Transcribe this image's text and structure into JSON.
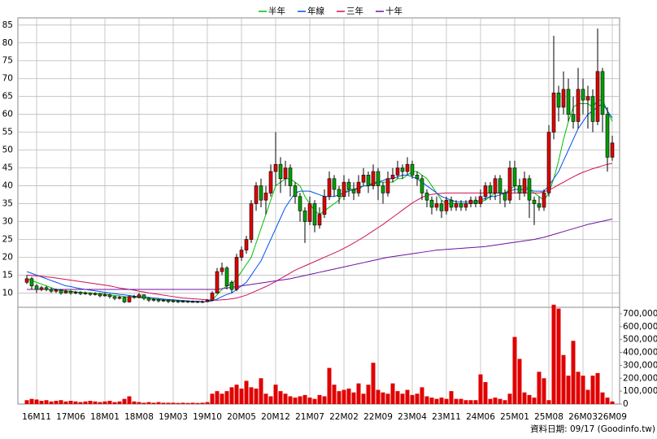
{
  "chart_data": {
    "type": "candlestick",
    "footer": "資料日期: 09/17 (Goodinfo.tw)",
    "categories": [
      null,
      null,
      "16M11",
      null,
      null,
      null,
      null,
      null,
      null,
      "17M06",
      null,
      null,
      null,
      null,
      null,
      null,
      "18M01",
      null,
      null,
      null,
      null,
      null,
      null,
      "18M08",
      null,
      null,
      null,
      null,
      null,
      null,
      "19M03",
      null,
      null,
      null,
      null,
      null,
      null,
      "19M10",
      null,
      null,
      null,
      null,
      null,
      null,
      "20M05",
      null,
      null,
      null,
      null,
      null,
      null,
      "20M12",
      null,
      null,
      null,
      null,
      null,
      null,
      "21M07",
      null,
      null,
      null,
      null,
      null,
      null,
      "22M02",
      null,
      null,
      null,
      null,
      null,
      null,
      "22M09",
      null,
      null,
      null,
      null,
      null,
      null,
      "23M04",
      null,
      null,
      null,
      null,
      null,
      null,
      "23M11",
      null,
      null,
      null,
      null,
      null,
      null,
      "24M06",
      null,
      null,
      null,
      null,
      null,
      null,
      "25M01",
      null,
      null,
      null,
      null,
      null,
      null,
      "25M08",
      null,
      null,
      null,
      null,
      null,
      null,
      "26M03",
      null,
      null,
      null,
      null,
      null,
      "26M09"
    ],
    "open": [
      13,
      14,
      12,
      11,
      11.5,
      11,
      10.5,
      10.8,
      10,
      10.5,
      10,
      10.2,
      9.8,
      10,
      9.6,
      9.8,
      9.2,
      9.5,
      9,
      8.5,
      8.8,
      7.5,
      9,
      8.8,
      9.5,
      8.5,
      8,
      8.2,
      7.8,
      8,
      7.6,
      7.8,
      7.5,
      7.7,
      7.5,
      7.6,
      7.4,
      7.6,
      8,
      10,
      16,
      17,
      13,
      11,
      20,
      22,
      25,
      35,
      40,
      36,
      38,
      44,
      46,
      42,
      45,
      40,
      37,
      33,
      30,
      35,
      29,
      32,
      37,
      42,
      39,
      37,
      41,
      39,
      38,
      41,
      43,
      40,
      44,
      40,
      38,
      42,
      43,
      45,
      44,
      46,
      43,
      42,
      38,
      36,
      34,
      35,
      33,
      36,
      34,
      35,
      34,
      35,
      36,
      35,
      37,
      40,
      38,
      42,
      38,
      36,
      45,
      40,
      38,
      42,
      36,
      35,
      34,
      38,
      55,
      66,
      62,
      67,
      60,
      58,
      67,
      64,
      65,
      58,
      72,
      60,
      48
    ],
    "high": [
      15,
      14.5,
      12.5,
      12,
      12,
      11.5,
      11.2,
      11,
      11,
      10.8,
      10.6,
      10.5,
      10.4,
      10.2,
      10.2,
      10,
      10,
      9.8,
      9.2,
      9.2,
      9,
      9.3,
      9.5,
      10,
      9.6,
      8.8,
      8.6,
      8.4,
      8.3,
      8.2,
      8.1,
      8,
      8,
      7.9,
      7.9,
      7.8,
      7.9,
      8.3,
      10.5,
      17,
      18.5,
      17.5,
      13.5,
      21,
      23,
      26,
      36,
      41,
      42,
      40,
      46,
      55,
      48,
      47,
      46,
      41,
      38,
      34,
      37,
      36,
      34,
      39,
      44,
      43,
      40,
      43,
      42,
      41,
      43,
      45,
      44,
      46,
      45,
      41,
      44,
      45,
      47,
      46,
      48,
      47,
      44,
      43,
      39,
      37,
      37,
      36,
      37,
      37,
      36,
      36,
      36,
      37,
      37,
      39,
      41,
      41,
      43,
      43,
      39,
      47,
      47,
      42,
      44,
      43,
      37,
      37,
      39,
      57,
      82,
      68,
      72,
      70,
      65,
      73,
      70,
      68,
      67,
      84,
      73,
      62,
      54
    ],
    "low": [
      12.5,
      11,
      10,
      10.5,
      10.5,
      10,
      10,
      9.5,
      9.8,
      9.5,
      9.6,
      9.4,
      9.5,
      9.2,
      9.3,
      8.8,
      9,
      8.5,
      8,
      8.2,
      7.2,
      7.3,
      8.4,
      8.5,
      8,
      7.5,
      7.6,
      7.4,
      7.5,
      7.2,
      7.3,
      7.2,
      7.3,
      7.2,
      7.3,
      7.2,
      7.2,
      7.4,
      7.8,
      9.8,
      15,
      11,
      10,
      10.5,
      19,
      21,
      24,
      33,
      34,
      32,
      37,
      40,
      38,
      40,
      37,
      35,
      30,
      24,
      29,
      27,
      28,
      31,
      36,
      37,
      35,
      36,
      37,
      36,
      37,
      40,
      38,
      39,
      36,
      35,
      37,
      41,
      42,
      42,
      43,
      42,
      40,
      36,
      34,
      32,
      33,
      31,
      32,
      33,
      33,
      33,
      33,
      34,
      34,
      34,
      36,
      36,
      36,
      35,
      34,
      35,
      38,
      36,
      37,
      31,
      29,
      33,
      33,
      37,
      53,
      58,
      60,
      58,
      56,
      56,
      60,
      56,
      55,
      57,
      55,
      44,
      47
    ],
    "close": [
      14,
      12,
      11,
      11.5,
      11,
      10.5,
      10.8,
      10,
      10.5,
      10,
      10.2,
      9.8,
      10,
      9.6,
      9.8,
      9.2,
      9.5,
      9,
      8.5,
      8.8,
      7.5,
      9,
      8.8,
      9.5,
      8.5,
      8,
      8.2,
      7.8,
      8,
      7.6,
      7.8,
      7.5,
      7.7,
      7.5,
      7.6,
      7.4,
      7.6,
      8,
      10,
      16,
      17,
      12,
      11,
      20,
      22,
      25,
      35,
      40,
      36,
      38,
      44,
      46,
      42,
      45,
      40,
      37,
      33,
      30,
      35,
      29,
      32,
      37,
      42,
      39,
      37,
      41,
      39,
      38,
      41,
      43,
      40,
      44,
      40,
      38,
      42,
      43,
      45,
      44,
      46,
      43,
      42,
      38,
      36,
      34,
      35,
      33,
      36,
      34,
      35,
      34,
      35,
      36,
      35,
      37,
      40,
      38,
      42,
      38,
      36,
      45,
      40,
      38,
      42,
      36,
      35,
      34,
      38,
      55,
      66,
      62,
      67,
      60,
      58,
      67,
      64,
      65,
      58,
      72,
      60,
      48,
      52
    ],
    "up_color": "#e00000",
    "down_color": "#00a000",
    "series": [
      {
        "name": "半年",
        "color": "#00c000",
        "values": [
          14,
          13.5,
          13,
          12.5,
          12,
          11.5,
          11,
          10.8,
          10.6,
          10.5,
          10.3,
          10.2,
          10.1,
          10,
          9.9,
          9.8,
          9.7,
          9.5,
          9.3,
          9.2,
          9,
          8.9,
          8.8,
          8.7,
          8.6,
          8.5,
          8.4,
          8.2,
          8.1,
          8,
          7.9,
          7.8,
          7.7,
          7.6,
          7.6,
          7.6,
          7.6,
          7.6,
          8,
          9.5,
          11,
          12,
          12.5,
          14,
          16,
          18,
          20,
          24,
          28,
          32,
          36,
          40,
          41,
          42,
          42,
          41,
          40,
          37,
          35,
          33,
          32,
          33,
          34,
          35,
          36,
          38,
          39,
          39,
          39,
          40,
          40,
          41,
          41,
          41,
          41,
          41,
          42,
          42,
          43,
          44,
          44,
          43,
          42,
          40,
          38,
          36,
          35,
          35,
          35,
          35,
          35,
          35,
          35,
          35.5,
          36,
          37,
          38,
          38,
          38,
          39,
          40,
          40,
          40,
          39,
          38,
          37,
          36,
          38,
          42,
          47,
          53,
          58,
          62,
          63,
          63,
          63,
          62,
          64,
          64,
          61,
          58
        ]
      },
      {
        "name": "年線",
        "color": "#0050f0",
        "values": [
          16,
          15.5,
          15,
          14.5,
          14,
          13.5,
          13,
          12.5,
          12,
          11.8,
          11.5,
          11.2,
          11,
          10.8,
          10.6,
          10.4,
          10.2,
          10,
          9.8,
          9.6,
          9.5,
          9.3,
          9.1,
          9,
          8.9,
          8.8,
          8.6,
          8.5,
          8.3,
          8.2,
          8.1,
          8,
          7.9,
          7.8,
          7.7,
          7.7,
          7.6,
          7.6,
          7.8,
          8.3,
          9,
          9.6,
          10,
          11,
          12,
          13,
          15,
          17,
          19,
          22,
          25,
          28,
          31,
          34,
          36,
          38,
          38.5,
          38.5,
          38.5,
          38,
          37.5,
          37,
          37,
          37,
          37.5,
          38,
          38.5,
          39,
          39.5,
          40,
          40,
          40.5,
          41,
          41.5,
          42,
          42,
          42.5,
          43,
          43,
          42.5,
          42,
          41,
          40,
          39,
          38,
          37,
          36.5,
          36,
          35.5,
          35.5,
          35.5,
          35.5,
          35.5,
          36,
          36.5,
          37,
          37,
          37.5,
          38,
          38.5,
          39,
          39,
          39,
          39,
          38.5,
          38.5,
          38.5,
          40,
          42,
          44,
          47,
          50,
          53,
          56,
          58,
          60,
          61,
          62,
          63,
          61,
          59
        ]
      },
      {
        "name": "三年",
        "color": "#d0105a",
        "values": [
          15,
          14.9,
          14.8,
          14.7,
          14.5,
          14.4,
          14.2,
          14,
          13.8,
          13.6,
          13.4,
          13.2,
          13,
          12.8,
          12.6,
          12.4,
          12.2,
          12,
          11.7,
          11.4,
          11.2,
          11,
          10.8,
          10.5,
          10.3,
          10,
          9.8,
          9.6,
          9.4,
          9.2,
          9,
          8.8,
          8.6,
          8.5,
          8.4,
          8.3,
          8.2,
          8.1,
          8,
          8,
          8.1,
          8.2,
          8.4,
          8.6,
          9,
          9.4,
          10,
          10.6,
          11.2,
          11.8,
          12.5,
          13.2,
          14,
          14.8,
          15.6,
          16.4,
          17,
          17.6,
          18.2,
          18.8,
          19.4,
          20,
          20.6,
          21.2,
          21.8,
          22.5,
          23.2,
          24,
          24.8,
          25.6,
          26.5,
          27.4,
          28.3,
          29.2,
          30.2,
          31.2,
          32.2,
          33.2,
          34.2,
          35.2,
          36,
          36.8,
          37.3,
          37.6,
          37.8,
          37.9,
          38,
          38,
          38,
          38,
          38,
          38,
          38,
          38,
          38,
          38,
          38,
          38,
          38,
          38,
          38,
          38,
          38,
          38,
          38,
          38,
          38.3,
          38.8,
          39.5,
          40.3,
          41,
          41.8,
          42.5,
          43.2,
          43.8,
          44.3,
          44.8,
          45.2,
          45.6,
          46,
          46.3
        ]
      },
      {
        "name": "十年",
        "color": "#7010a0",
        "values": [
          11,
          11,
          11,
          11,
          11,
          11,
          11,
          11,
          11,
          11,
          11,
          11,
          11,
          11,
          11,
          11,
          11,
          11,
          11,
          11,
          11,
          11,
          11,
          11,
          11,
          11,
          11,
          11,
          11,
          11,
          11,
          11,
          11,
          11,
          11,
          11,
          11,
          11,
          11,
          11,
          11.2,
          11.4,
          11.6,
          11.8,
          12,
          12.2,
          12.4,
          12.6,
          12.8,
          13,
          13.2,
          13.4,
          13.6,
          13.8,
          14,
          14.3,
          14.6,
          14.9,
          15.2,
          15.5,
          15.8,
          16.1,
          16.4,
          16.7,
          17,
          17.3,
          17.6,
          17.9,
          18.2,
          18.5,
          18.8,
          19.1,
          19.4,
          19.7,
          20,
          20.2,
          20.4,
          20.6,
          20.8,
          21,
          21.2,
          21.4,
          21.6,
          21.8,
          22,
          22.1,
          22.2,
          22.3,
          22.4,
          22.5,
          22.6,
          22.7,
          22.8,
          22.9,
          23,
          23.2,
          23.4,
          23.6,
          23.8,
          24,
          24.2,
          24.4,
          24.6,
          24.8,
          25,
          25.3,
          25.6,
          26,
          26.4,
          26.8,
          27.2,
          27.6,
          28,
          28.4,
          28.8,
          29.2,
          29.5,
          29.8,
          30.1,
          30.4,
          30.7
        ]
      }
    ],
    "ylim": [
      6,
      87
    ],
    "yticks": [
      10,
      15,
      20,
      25,
      30,
      35,
      40,
      45,
      50,
      55,
      60,
      65,
      70,
      75,
      80,
      85
    ],
    "grid": true,
    "volume": {
      "color": "#e00000",
      "values": [
        30000,
        40000,
        35000,
        25000,
        30000,
        20000,
        25000,
        30000,
        20000,
        25000,
        20000,
        15000,
        20000,
        25000,
        20000,
        15000,
        20000,
        25000,
        15000,
        20000,
        40000,
        60000,
        20000,
        15000,
        10000,
        15000,
        10000,
        15000,
        10000,
        10000,
        10000,
        8000,
        10000,
        8000,
        10000,
        8000,
        10000,
        15000,
        80000,
        100000,
        80000,
        100000,
        130000,
        150000,
        120000,
        180000,
        130000,
        120000,
        200000,
        80000,
        60000,
        150000,
        100000,
        80000,
        60000,
        50000,
        60000,
        70000,
        50000,
        40000,
        70000,
        60000,
        280000,
        150000,
        100000,
        110000,
        120000,
        90000,
        160000,
        80000,
        150000,
        320000,
        110000,
        90000,
        80000,
        160000,
        100000,
        80000,
        110000,
        70000,
        80000,
        130000,
        60000,
        50000,
        40000,
        50000,
        40000,
        100000,
        40000,
        40000,
        30000,
        30000,
        30000,
        230000,
        170000,
        40000,
        50000,
        40000,
        30000,
        80000,
        520000,
        350000,
        90000,
        70000,
        50000,
        250000,
        200000,
        30000,
        770000,
        740000,
        380000,
        220000,
        490000,
        250000,
        220000,
        110000,
        220000,
        240000,
        90000,
        50000,
        20000
      ],
      "ylim": [
        0,
        750000
      ],
      "yticks": [
        0,
        {
          "value": 100000,
          "label": "100,000"
        },
        {
          "value": 200000,
          "label": "200,000"
        },
        {
          "value": 300000,
          "label": "300,000"
        },
        {
          "value": 400000,
          "label": "400,000"
        },
        {
          "value": 500000,
          "label": "500,000"
        },
        {
          "value": 600000,
          "label": "600,000"
        },
        {
          "value": 700000,
          "label": "700,000"
        }
      ]
    }
  }
}
